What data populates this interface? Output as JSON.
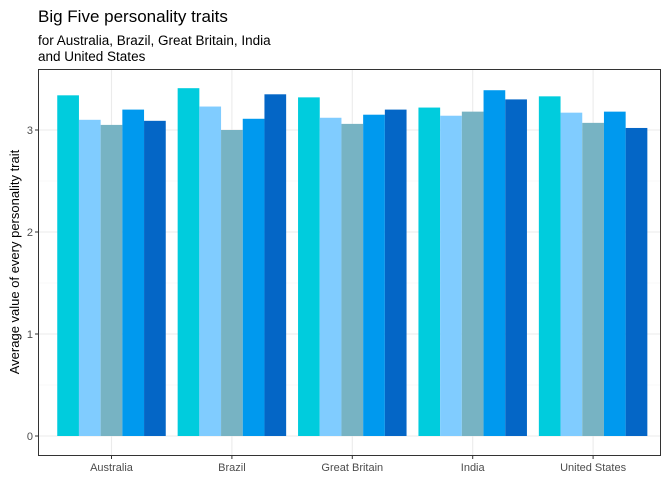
{
  "chart_data": {
    "type": "bar",
    "title": "Big Five personality traits",
    "subtitle_lines": [
      "for Australia, Brazil, Great Britain, India",
      "and United States"
    ],
    "xlabel": "",
    "ylabel": "Average value of every personality trait",
    "categories": [
      "Australia",
      "Brazil",
      "Great Britain",
      "India",
      "United States"
    ],
    "ylim": [
      0,
      3.5
    ],
    "yticks": [
      0,
      1,
      2,
      3
    ],
    "grid": true,
    "legend": "none",
    "series": [
      {
        "color": "#00CCDD",
        "values": [
          3.34,
          3.41,
          3.32,
          3.22,
          3.33
        ]
      },
      {
        "color": "#80CCFF",
        "values": [
          3.1,
          3.23,
          3.12,
          3.14,
          3.17
        ]
      },
      {
        "color": "#77B3C3",
        "values": [
          3.05,
          3.0,
          3.06,
          3.18,
          3.07
        ]
      },
      {
        "color": "#0099EE",
        "values": [
          3.2,
          3.11,
          3.15,
          3.39,
          3.18
        ]
      },
      {
        "color": "#0466C6",
        "values": [
          3.09,
          3.35,
          3.2,
          3.3,
          3.02
        ]
      }
    ]
  }
}
